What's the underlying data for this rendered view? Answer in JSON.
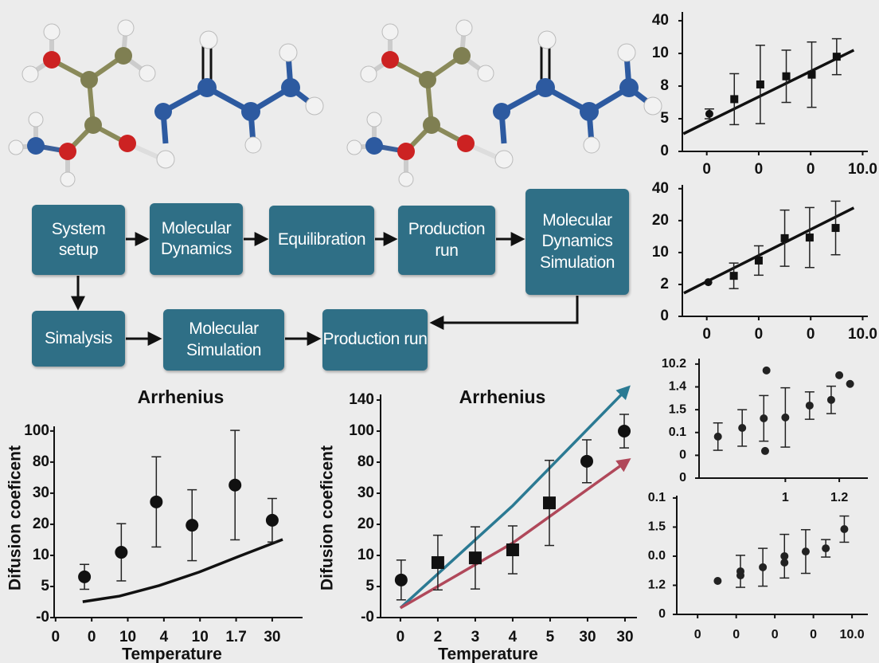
{
  "flowchart": {
    "nodes": [
      {
        "label": "System setup"
      },
      {
        "label": "Molecular Dynamics"
      },
      {
        "label": "Equilibration"
      },
      {
        "label": "Production run"
      },
      {
        "label": "Molecular Dynamics Simulation"
      },
      {
        "label": "Simalysis"
      },
      {
        "label": "Molecular Simulation"
      },
      {
        "label": "Production run"
      }
    ]
  },
  "chart_data": [
    {
      "type": "scatter",
      "xlim": [
        -0.47,
        3.1
      ],
      "ylim": [
        0,
        4.27
      ],
      "xticks": [
        0,
        {
          "value": 1,
          "label": "0"
        },
        {
          "value": 2,
          "label": "0"
        },
        {
          "value": 3,
          "label": "10.0"
        }
      ],
      "yticks": [
        0,
        {
          "value": 1,
          "label": "5"
        },
        {
          "value": 2,
          "label": "8"
        },
        {
          "value": 3,
          "label": "10"
        },
        {
          "value": 4,
          "label": "40"
        }
      ],
      "series": [
        {
          "color": "#111111",
          "markers": [
            "circle",
            "square",
            "square",
            "square",
            "square",
            "square"
          ],
          "x": [
            0.05,
            0.53,
            1.03,
            1.53,
            2.02,
            2.5
          ],
          "values": [
            1.15,
            1.6,
            2.05,
            2.3,
            2.35,
            2.9
          ],
          "errors": [
            0.15,
            0.78,
            1.2,
            0.8,
            1.0,
            0.55
          ]
        }
      ],
      "lines": [
        {
          "color": "#111111",
          "x": [
            -0.45,
            2.83
          ],
          "values": [
            0.54,
            3.1
          ]
        }
      ]
    },
    {
      "type": "scatter",
      "xlim": [
        -0.47,
        3.1
      ],
      "ylim": [
        0,
        4.12
      ],
      "xticks": [
        0,
        {
          "value": 1,
          "label": "0"
        },
        {
          "value": 2,
          "label": "0"
        },
        {
          "value": 3,
          "label": "10.0"
        }
      ],
      "yticks": [
        0,
        {
          "value": 1,
          "label": "2"
        },
        {
          "value": 2,
          "label": "10"
        },
        {
          "value": 3,
          "label": "20"
        },
        {
          "value": 4,
          "label": "40"
        }
      ],
      "series": [
        {
          "color": "#111111",
          "markers": [
            "circle",
            "square",
            "square",
            "square",
            "square",
            "square"
          ],
          "x": [
            0.03,
            0.52,
            1.0,
            1.5,
            1.98,
            2.48
          ],
          "values": [
            1.07,
            1.27,
            1.75,
            2.45,
            2.47,
            2.77
          ],
          "errors": [
            null,
            0.4,
            0.46,
            0.88,
            0.94,
            0.84
          ]
        }
      ],
      "lines": [
        {
          "color": "#111111",
          "x": [
            -0.44,
            2.83
          ],
          "values": [
            0.73,
            3.4
          ]
        }
      ]
    },
    {
      "type": "scatter",
      "xlim": [
        0.68,
        1.306
      ],
      "ylim": [
        0,
        5.24
      ],
      "xticks": [
        1,
        1.2
      ],
      "yticks": [
        0,
        {
          "value": 1,
          "label": "0"
        },
        {
          "value": 2,
          "label": "0.1"
        },
        {
          "value": 3,
          "label": "1.5"
        },
        {
          "value": 4,
          "label": "1.4"
        },
        {
          "value": 5,
          "label": "10.2"
        }
      ],
      "series": [
        {
          "color": "#222222",
          "markers": [
            "circle",
            "circle",
            "circle",
            "circle",
            "circle",
            "circle",
            "circle",
            "circle",
            "circle",
            "circle"
          ],
          "x": [
            0.75,
            0.84,
            0.92,
            1.0,
            1.09,
            1.17,
            0.93,
            0.925,
            1.2,
            1.24
          ],
          "values": [
            1.82,
            2.2,
            2.62,
            2.66,
            3.18,
            3.43,
            4.72,
            1.19,
            4.51,
            4.13
          ],
          "errors": [
            0.6,
            0.8,
            1.0,
            1.3,
            0.6,
            0.6,
            null,
            null,
            null,
            null
          ]
        }
      ]
    },
    {
      "type": "scatter",
      "xlim": [
        -0.54,
        4.41
      ],
      "ylim": [
        0,
        4.08
      ],
      "xticks": [
        0,
        {
          "value": 1,
          "label": "0"
        },
        {
          "value": 2,
          "label": "0"
        },
        {
          "value": 3,
          "label": "0"
        },
        {
          "value": 4,
          "label": "10.0"
        }
      ],
      "yticks": [
        0,
        {
          "value": 1,
          "label": "1.2"
        },
        {
          "value": 2,
          "label": "0.0"
        },
        {
          "value": 3,
          "label": "1.5"
        },
        {
          "value": 4,
          "label": "0.1"
        }
      ],
      "series": [
        {
          "color": "#222222",
          "markers": [
            "circle",
            "circle",
            "circle",
            "circle",
            "circle",
            "circle",
            "circle",
            "circle",
            "circle"
          ],
          "x": [
            0.52,
            1.11,
            1.11,
            1.69,
            2.25,
            2.25,
            2.8,
            3.32,
            3.8
          ],
          "values": [
            1.15,
            1.48,
            1.34,
            1.62,
            2.0,
            1.78,
            2.16,
            2.27,
            2.93
          ],
          "errors": [
            null,
            0.55,
            null,
            0.65,
            0.75,
            null,
            0.75,
            0.3,
            0.45
          ]
        }
      ]
    },
    {
      "type": "scatter",
      "title": "Arrhenius",
      "xlabel": "Temperature",
      "ylabel": "Difusion coeficent",
      "xlim": [
        -0.04,
        6.84
      ],
      "ylim": [
        0,
        6.15
      ],
      "xticks": [
        0,
        {
          "value": 1,
          "label": "0"
        },
        {
          "value": 2,
          "label": "10"
        },
        {
          "value": 3,
          "label": "4"
        },
        {
          "value": 4,
          "label": "10"
        },
        {
          "value": 5,
          "label": "1.7"
        },
        {
          "value": 6,
          "label": "30"
        }
      ],
      "yticks": [
        {
          "value": 0,
          "label": "-0"
        },
        {
          "value": 1,
          "label": "5"
        },
        {
          "value": 2,
          "label": "10"
        },
        {
          "value": 3,
          "label": "20"
        },
        {
          "value": 4,
          "label": "30"
        },
        {
          "value": 5,
          "label": "80"
        },
        {
          "value": 6,
          "label": "100"
        }
      ],
      "series": [
        {
          "color": "#111111",
          "markers": [
            "circle",
            "circle",
            "circle",
            "circle",
            "circle",
            "circle"
          ],
          "x": [
            0.8,
            1.82,
            2.79,
            3.78,
            4.97,
            6.0
          ],
          "values": [
            1.31,
            2.1,
            3.72,
            2.97,
            4.26,
            3.13
          ],
          "errors": [
            0.4,
            0.92,
            1.45,
            1.14,
            1.76,
            0.7
          ]
        }
      ],
      "lines": [
        {
          "color": "#111111",
          "x": [
            0.75,
            1.77,
            2.87,
            3.97,
            5.08,
            6.29
          ],
          "values": [
            0.51,
            0.69,
            1.03,
            1.46,
            1.97,
            2.51
          ]
        }
      ]
    },
    {
      "type": "scatter",
      "title": "Arrhenius",
      "xlabel": "Temperature",
      "ylabel": "Difusion coeficent",
      "xlim": [
        -0.53,
        6.32
      ],
      "ylim": [
        0,
        7.18
      ],
      "xticks": [
        0,
        {
          "value": 1,
          "label": "2"
        },
        {
          "value": 2,
          "label": "3"
        },
        {
          "value": 3,
          "label": "4"
        },
        {
          "value": 4,
          "label": "5"
        },
        {
          "value": 5,
          "label": "30"
        },
        {
          "value": 6,
          "label": "30"
        }
      ],
      "yticks": [
        {
          "value": 0,
          "label": "-0"
        },
        {
          "value": 1,
          "label": "5"
        },
        {
          "value": 2,
          "label": "10"
        },
        {
          "value": 3,
          "label": "20"
        },
        {
          "value": 4,
          "label": "30"
        },
        {
          "value": 5,
          "label": "80"
        },
        {
          "value": 6,
          "label": "100"
        },
        {
          "value": 7,
          "label": "140"
        }
      ],
      "series": [
        {
          "color": "#111111",
          "markers": [
            "circle",
            "square",
            "square",
            "square",
            "square",
            "circle",
            "circle"
          ],
          "x": [
            0.02,
            1.0,
            2.0,
            3.0,
            3.98,
            4.98,
            5.98
          ],
          "values": [
            1.21,
            1.77,
            1.92,
            2.18,
            3.69,
            5.03,
            6.0
          ],
          "errors": [
            0.64,
            0.88,
            1.0,
            0.77,
            1.37,
            0.69,
            0.54
          ]
        }
      ],
      "lines": [
        {
          "color": "#2b7a93",
          "arrow": true,
          "x": [
            0,
            3,
            6.07
          ],
          "values": [
            0.31,
            3.6,
            7.38
          ]
        },
        {
          "color": "#b0485a",
          "arrow": true,
          "x": [
            0,
            3,
            6.07
          ],
          "values": [
            0.31,
            2.4,
            5.05
          ]
        }
      ]
    }
  ]
}
